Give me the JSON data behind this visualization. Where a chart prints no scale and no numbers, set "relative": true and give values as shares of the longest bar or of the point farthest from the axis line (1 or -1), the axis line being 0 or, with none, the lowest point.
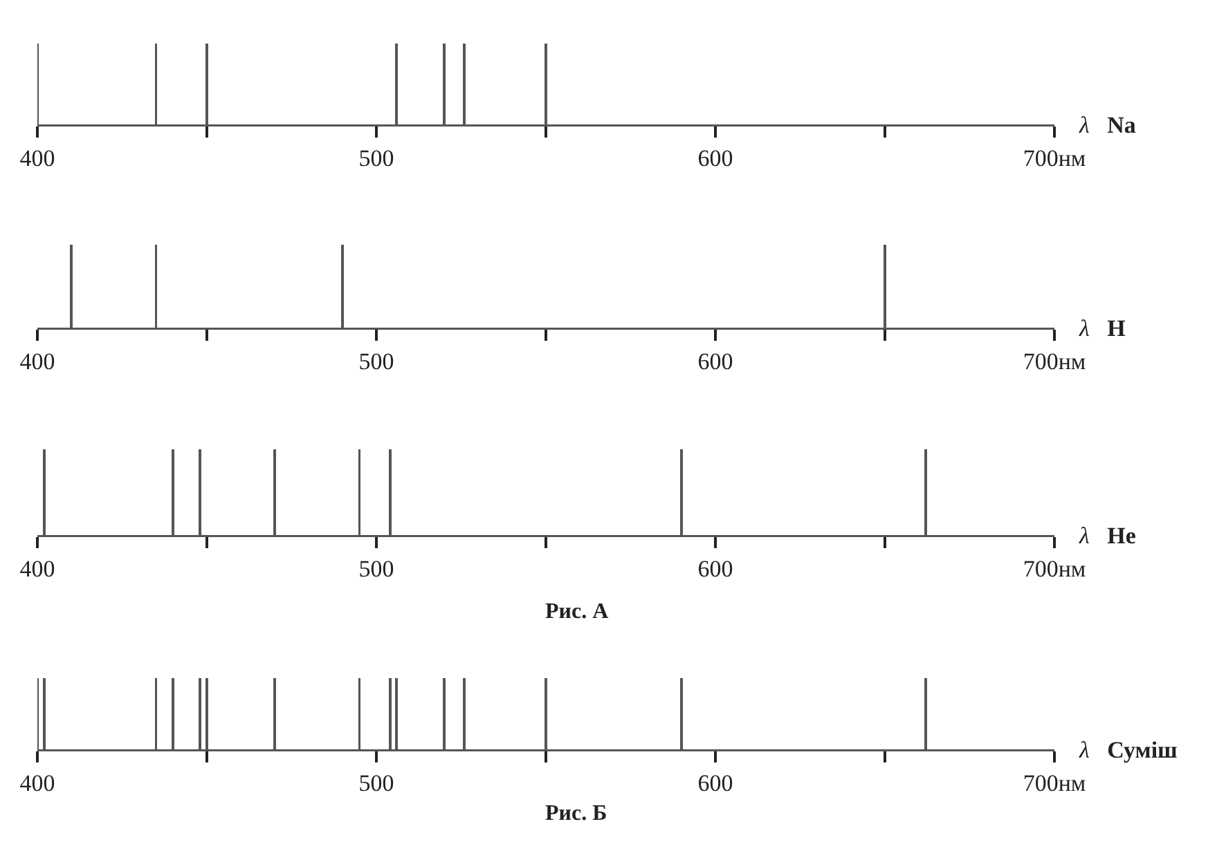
{
  "chart_data": [
    {
      "type": "bar",
      "relative": true,
      "xlabel": "λ",
      "x": [
        400,
        435,
        450,
        506,
        520,
        526,
        550
      ],
      "series": [
        {
          "name": "Na",
          "color": "#555555",
          "values": [
            1,
            1,
            1,
            1,
            1,
            1,
            1
          ]
        }
      ],
      "xlim": [
        400,
        700
      ],
      "xticks": [
        400,
        {
          "value": 450,
          "label": null
        },
        500,
        {
          "value": 550,
          "label": null
        },
        600,
        {
          "value": 650,
          "label": null
        },
        {
          "value": 700,
          "label": "700нм"
        }
      ],
      "grid": false,
      "legend": false
    },
    {
      "type": "bar",
      "relative": true,
      "xlabel": "λ",
      "x": [
        410,
        435,
        490,
        650
      ],
      "series": [
        {
          "name": "H",
          "color": "#555555",
          "values": [
            1,
            1,
            1,
            1
          ]
        }
      ],
      "xlim": [
        400,
        700
      ],
      "xticks": [
        400,
        {
          "value": 450,
          "label": null
        },
        500,
        {
          "value": 550,
          "label": null
        },
        600,
        {
          "value": 650,
          "label": null
        },
        {
          "value": 700,
          "label": "700нм"
        }
      ],
      "grid": false,
      "legend": false
    },
    {
      "type": "bar",
      "relative": true,
      "xlabel": "λ",
      "x": [
        402,
        440,
        448,
        470,
        495,
        504,
        590,
        662
      ],
      "series": [
        {
          "name": "He",
          "color": "#555555",
          "values": [
            1,
            1,
            1,
            1,
            1,
            1,
            1,
            1
          ]
        }
      ],
      "xlim": [
        400,
        700
      ],
      "xticks": [
        400,
        {
          "value": 450,
          "label": null
        },
        500,
        {
          "value": 550,
          "label": null
        },
        600,
        {
          "value": 650,
          "label": null
        },
        {
          "value": 700,
          "label": "700нм"
        }
      ],
      "grid": false,
      "legend": false,
      "annotations": [
        "Рис. А"
      ]
    },
    {
      "type": "bar",
      "relative": true,
      "xlabel": "λ",
      "x": [
        400,
        402,
        435,
        440,
        448,
        450,
        470,
        495,
        504,
        506,
        520,
        526,
        550,
        590,
        662
      ],
      "series": [
        {
          "name": "Суміш",
          "color": "#555555",
          "values": [
            1,
            1,
            1,
            1,
            1,
            1,
            1,
            1,
            1,
            1,
            1,
            1,
            1,
            1,
            1
          ]
        }
      ],
      "xlim": [
        400,
        700
      ],
      "xticks": [
        400,
        {
          "value": 450,
          "label": null
        },
        500,
        {
          "value": 550,
          "label": null
        },
        600,
        {
          "value": 650,
          "label": null
        },
        {
          "value": 700,
          "label": "700нм"
        }
      ],
      "grid": false,
      "legend": false,
      "annotations": [
        "Рис. Б"
      ]
    }
  ]
}
